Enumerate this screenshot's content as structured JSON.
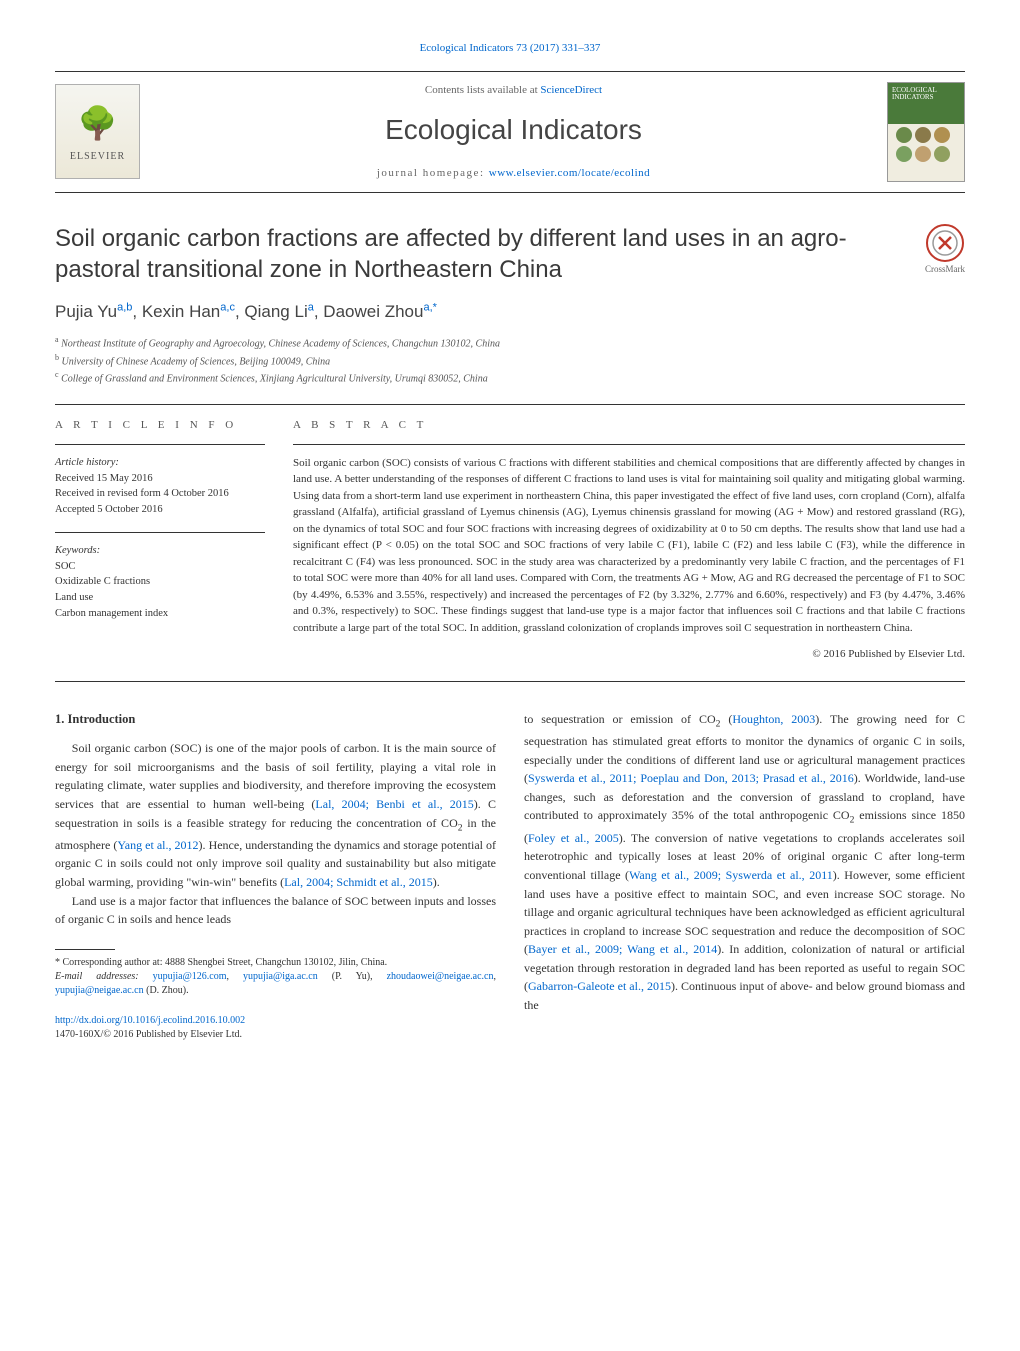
{
  "header": {
    "citation_prefix": "Ecological Indicators 73 (2017) 331–337",
    "contents_line_prefix": "Contents lists available at ",
    "contents_link": "ScienceDirect",
    "journal_title": "Ecological Indicators",
    "homepage_prefix": "journal homepage: ",
    "homepage_url": "www.elsevier.com/locate/ecolind",
    "elsevier_label": "ELSEVIER",
    "cover_title": "ECOLOGICAL INDICATORS",
    "cover_circle_colors": [
      "#6a8a4a",
      "#8a7a4a",
      "#b09050",
      "#7aa060",
      "#c0a070",
      "#90a060"
    ]
  },
  "title": "Soil organic carbon fractions are affected by different land uses in an agro-pastoral transitional zone in Northeastern China",
  "crossmark_label": "CrossMark",
  "authors_html": "Pujia Yu<span class='sup'>a,b</span>, Kexin Han<span class='sup'>a,c</span>, Qiang Li<span class='sup'>a</span>, Daowei Zhou<span class='sup'>a,</span><span class='sup'>*</span>",
  "affiliations": [
    {
      "label": "a",
      "text": "Northeast Institute of Geography and Agroecology, Chinese Academy of Sciences, Changchun 130102, China"
    },
    {
      "label": "b",
      "text": "University of Chinese Academy of Sciences, Beijing 100049, China"
    },
    {
      "label": "c",
      "text": "College of Grassland and Environment Sciences, Xinjiang Agricultural University, Urumqi 830052, China"
    }
  ],
  "article_info": {
    "head": "a r t i c l e   i n f o",
    "history_head": "Article history:",
    "history": [
      "Received 15 May 2016",
      "Received in revised form 4 October 2016",
      "Accepted 5 October 2016"
    ],
    "keywords_head": "Keywords:",
    "keywords": [
      "SOC",
      "Oxidizable C fractions",
      "Land use",
      "Carbon management index"
    ]
  },
  "abstract": {
    "head": "a b s t r a c t",
    "text": "Soil organic carbon (SOC) consists of various C fractions with different stabilities and chemical compositions that are differently affected by changes in land use. A better understanding of the responses of different C fractions to land uses is vital for maintaining soil quality and mitigating global warming. Using data from a short-term land use experiment in northeastern China, this paper investigated the effect of five land uses, corn cropland (Corn), alfalfa grassland (Alfalfa), artificial grassland of Lyemus chinensis (AG), Lyemus chinensis grassland for mowing (AG + Mow) and restored grassland (RG), on the dynamics of total SOC and four SOC fractions with increasing degrees of oxidizability at 0 to 50 cm depths. The results show that land use had a significant effect (P < 0.05) on the total SOC and SOC fractions of very labile C (F1), labile C (F2) and less labile C (F3), while the difference in recalcitrant C (F4) was less pronounced. SOC in the study area was characterized by a predominantly very labile C fraction, and the percentages of F1 to total SOC were more than 40% for all land uses. Compared with Corn, the treatments AG + Mow, AG and RG decreased the percentage of F1 to SOC (by 4.49%, 6.53% and 3.55%, respectively) and increased the percentages of F2 (by 3.32%, 2.77% and 6.60%, respectively) and F3 (by 4.47%, 3.46% and 0.3%, respectively) to SOC. These findings suggest that land-use type is a major factor that influences soil C fractions and that labile C fractions contribute a large part of the total SOC. In addition, grassland colonization of croplands improves soil C sequestration in northeastern China.",
    "copyright": "© 2016 Published by Elsevier Ltd."
  },
  "body": {
    "section_head": "1. Introduction",
    "col1_p1": "Soil organic carbon (SOC) is one of the major pools of carbon. It is the main source of energy for soil microorganisms and the basis of soil fertility, playing a vital role in regulating climate, water supplies and biodiversity, and therefore improving the ecosystem services that are essential to human well-being (",
    "col1_ref1": "Lal, 2004; Benbi et al., 2015",
    "col1_p1b": "). C sequestration in soils is a feasible strategy for reducing the concentration of CO",
    "col1_p1c": " in the atmosphere (",
    "col1_ref2": "Yang et al., 2012",
    "col1_p1d": "). Hence, understanding the dynamics and storage potential of organic C in soils could not only improve soil quality and sustainability but also mitigate global warming, providing \"win-win\" benefits (",
    "col1_ref3": "Lal, 2004; Schmidt et al., 2015",
    "col1_p1e": ").",
    "col1_p2": "Land use is a major factor that influences the balance of SOC between inputs and losses of organic C in soils and hence leads",
    "col2_p1a": "to sequestration or emission of CO",
    "col2_p1b": " (",
    "col2_ref1": "Houghton, 2003",
    "col2_p1c": "). The growing need for C sequestration has stimulated great efforts to monitor the dynamics of organic C in soils, especially under the conditions of different land use or agricultural management practices (",
    "col2_ref2": "Syswerda et al., 2011; Poeplau and Don, 2013; Prasad et al., 2016",
    "col2_p1d": "). Worldwide, land-use changes, such as deforestation and the conversion of grassland to cropland, have contributed to approximately 35% of the total anthropogenic CO",
    "col2_p1e": " emissions since 1850 (",
    "col2_ref3": "Foley et al., 2005",
    "col2_p1f": "). The conversion of native vegetations to croplands accelerates soil heterotrophic and typically loses at least 20% of original organic C after long-term conventional tillage (",
    "col2_ref4": "Wang et al., 2009; Syswerda et al., 2011",
    "col2_p1g": "). However, some efficient land uses have a positive effect to maintain SOC, and even increase SOC storage. No tillage and organic agricultural techniques have been acknowledged as efficient agricultural practices in cropland to increase SOC sequestration and reduce the decomposition of SOC (",
    "col2_ref5": "Bayer et al., 2009; Wang et al., 2014",
    "col2_p1h": "). In addition, colonization of natural or artificial vegetation through restoration in degraded land has been reported as useful to regain SOC (",
    "col2_ref6": "Gabarron-Galeote et al., 2015",
    "col2_p1i": "). Continuous input of above- and below ground biomass and the"
  },
  "footnote": {
    "corr": "* Corresponding author at: 4888 Shengbei Street, Changchun 130102, Jilin, China.",
    "email_label": "E-mail addresses: ",
    "emails": [
      {
        "addr": "yupujia@126.com",
        "who": ""
      },
      {
        "addr": "yupujia@iga.ac.cn",
        "who": " (P. Yu),"
      },
      {
        "addr": "zhoudaowei@neigae.ac.cn",
        "who": ""
      },
      {
        "addr": "yupujia@neigae.ac.cn",
        "who": " (D. Zhou)."
      }
    ]
  },
  "doi": {
    "url": "http://dx.doi.org/10.1016/j.ecolind.2016.10.002",
    "issn_line": "1470-160X/© 2016 Published by Elsevier Ltd."
  },
  "colors": {
    "link": "#0066cc",
    "text": "#333333",
    "muted": "#666666",
    "rule": "#333333",
    "cover_green": "#4a7a3a"
  }
}
